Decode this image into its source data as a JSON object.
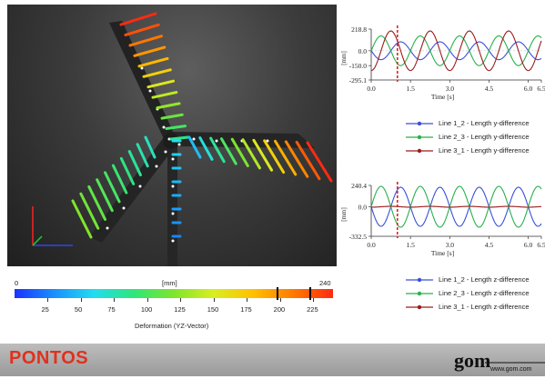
{
  "viewport": {
    "axis_colors": {
      "x": "#3344ee",
      "y": "#22bb33",
      "z": "#ee2222"
    }
  },
  "colorscale": {
    "min_label": "0",
    "max_label": "240",
    "unit": "[mm]",
    "ticks": [
      "25",
      "50",
      "75",
      "100",
      "125",
      "150",
      "175",
      "200",
      "225"
    ],
    "title": "Deformation (YZ-Vector)",
    "stops": [
      "#1a33ff",
      "#1890ff",
      "#22ddee",
      "#2ee67a",
      "#7fe52a",
      "#d9ee22",
      "#ffc000",
      "#ff7a00",
      "#ff2a10"
    ]
  },
  "charts": [
    {
      "y_tick_labels": [
        "218.8",
        "0.0",
        "-150.0",
        "-295.1"
      ],
      "y_unit": "[mm]",
      "x_tick_labels": [
        "0.0",
        "1.5",
        "3.0",
        "4.5",
        "6.0",
        "6.5"
      ],
      "x_label": "Time [s]",
      "legend": [
        "Line 1_2 - Length y-difference",
        "Line 2_3 - Length y-difference",
        "Line 3_1 - Length y-difference"
      ]
    },
    {
      "y_tick_labels": [
        "240.4",
        "0.0",
        "-332.5"
      ],
      "y_unit": "[mm]",
      "x_tick_labels": [
        "0.0",
        "1.5",
        "3.0",
        "4.5",
        "6.0",
        "6.5"
      ],
      "x_label": "Time [s]",
      "legend": [
        "Line 1_2 - Length z-difference",
        "Line 2_3 - Length z-difference",
        "Line 3_1 - Length z-difference"
      ]
    }
  ],
  "chart_data": [
    {
      "type": "line",
      "xlim": [
        0,
        6.5
      ],
      "ylim": [
        -295.1,
        218.8
      ],
      "marker_time": 1.0,
      "series": [
        {
          "name": "Line 1_2 - Length y-difference",
          "color": "#3b4fd9",
          "amplitude": 90,
          "period": 1.5,
          "phase": 0.5
        },
        {
          "name": "Line 2_3 - Length y-difference",
          "color": "#27b14a",
          "amplitude": 150,
          "period": 1.5,
          "phase": 0.0
        },
        {
          "name": "Line 3_1 - Length y-difference",
          "color": "#9b1c1c",
          "amplitude": 200,
          "period": 1.5,
          "phase": 0.25
        }
      ]
    },
    {
      "type": "line",
      "xlim": [
        0,
        6.5
      ],
      "ylim": [
        -332.5,
        240.4
      ],
      "marker_time": 1.0,
      "series": [
        {
          "name": "Line 1_2 - Length z-difference",
          "color": "#3b4fd9",
          "amplitude": 220,
          "period": 1.5,
          "phase": 0.5
        },
        {
          "name": "Line 2_3 - Length z-difference",
          "color": "#27b14a",
          "amplitude": 230,
          "period": 1.5,
          "phase": 0.0
        },
        {
          "name": "Line 3_1 - Length z-difference",
          "color": "#9b1c1c",
          "amplitude": 5,
          "period": 1.5,
          "phase": 0.25
        }
      ]
    }
  ],
  "footer": {
    "brand": "PONTOS",
    "logo_text": "gom",
    "url": "www.gom.com",
    "logo_color": "#111111",
    "accent": "#e0311d"
  }
}
